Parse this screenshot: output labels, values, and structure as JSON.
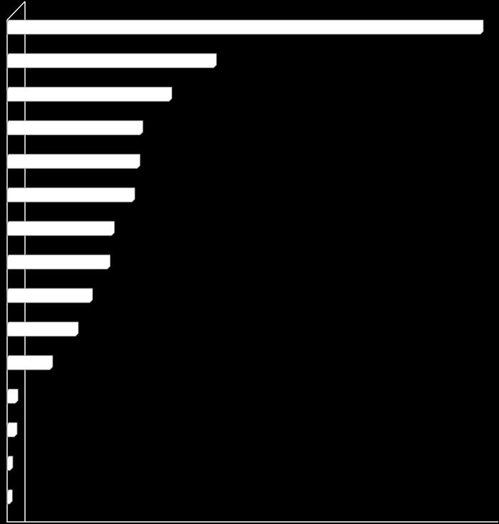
{
  "chart_data": {
    "type": "bar",
    "orientation": "horizontal",
    "categories": [
      null,
      null,
      null,
      null,
      null,
      null,
      null,
      null,
      null,
      null,
      null,
      null,
      null,
      null,
      null
    ],
    "values": [
      100,
      43.8,
      34.4,
      28.3,
      27.7,
      26.6,
      22.3,
      21.4,
      17.7,
      14.7,
      9.3,
      2,
      1.8,
      0.9,
      0.8
    ],
    "color": "#ffffff",
    "xlim": [
      0,
      100
    ]
  }
}
